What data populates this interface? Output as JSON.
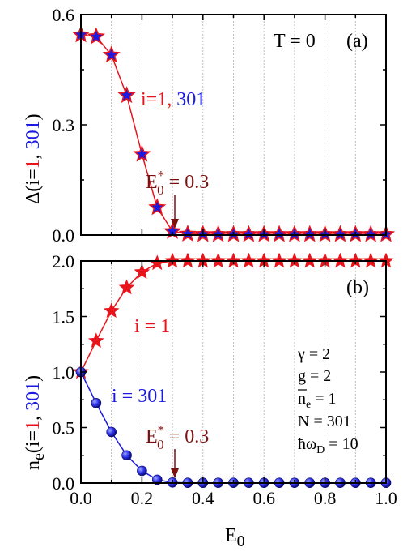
{
  "colors": {
    "red": "#e8141b",
    "blue": "#1a1ae0",
    "dark_red": "#7a1010",
    "black": "#000000"
  },
  "chart_data": [
    {
      "panel": "(a)",
      "type": "line",
      "ylabel_parts": [
        "Δ(i=",
        "1",
        ", ",
        "301",
        ")"
      ],
      "xlim": [
        0,
        1.0
      ],
      "ylim": [
        0,
        0.6
      ],
      "yticks": [
        0.0,
        0.3,
        0.6
      ],
      "ytick_labels": [
        "0.0",
        "0.3",
        "0.6"
      ],
      "grid": "vertical dotted at x = 0.1 … 0.9",
      "label_T": "T = 0",
      "series_label_parts": [
        "i=1, ",
        "301"
      ],
      "series": [
        {
          "name": "i=1, 301",
          "marker": "star",
          "x": [
            0,
            0.05,
            0.1,
            0.15,
            0.2,
            0.25,
            0.3,
            0.35,
            0.4,
            0.45,
            0.5,
            0.55,
            0.6,
            0.65,
            0.7,
            0.75,
            0.8,
            0.85,
            0.9,
            0.95,
            1.0
          ],
          "values": [
            0.545,
            0.54,
            0.49,
            0.38,
            0.22,
            0.075,
            0.01,
            0.003,
            0.002,
            0.002,
            0.002,
            0.002,
            0.002,
            0.002,
            0.002,
            0.002,
            0.002,
            0.002,
            0.002,
            0.002,
            0.002
          ]
        }
      ],
      "annotation": {
        "text": "E",
        "sub": "0",
        "sup": "*",
        "rest": " = 0.3",
        "x": 0.3
      }
    },
    {
      "panel": "(b)",
      "type": "line",
      "ylabel_parts": [
        "n",
        "e",
        "(i=",
        "1",
        ", ",
        "301",
        ")"
      ],
      "xlim": [
        0,
        1.0
      ],
      "ylim": [
        0,
        2.0
      ],
      "yticks": [
        0.0,
        0.5,
        1.0,
        1.5,
        2.0
      ],
      "ytick_labels": [
        "0.0",
        "0.5",
        "1.0",
        "1.5",
        "2.0"
      ],
      "xticks": [
        0.0,
        0.2,
        0.4,
        0.6,
        0.8,
        1.0
      ],
      "xtick_labels": [
        "0.0",
        "0.2",
        "0.4",
        "0.6",
        "0.8",
        "1.0"
      ],
      "xlabel": "E",
      "xlabel_sub": "0",
      "series": [
        {
          "name": "i = 1",
          "marker": "star",
          "x": [
            0,
            0.05,
            0.1,
            0.15,
            0.2,
            0.25,
            0.3,
            0.35,
            0.4,
            0.45,
            0.5,
            0.55,
            0.6,
            0.65,
            0.7,
            0.75,
            0.8,
            0.85,
            0.9,
            0.95,
            1.0
          ],
          "values": [
            1.0,
            1.28,
            1.55,
            1.76,
            1.9,
            1.98,
            2.0,
            2.0,
            2.0,
            2.0,
            2.0,
            2.0,
            2.0,
            2.0,
            2.0,
            2.0,
            2.0,
            2.0,
            2.0,
            2.0,
            2.0
          ]
        },
        {
          "name": "i = 301",
          "marker": "sphere",
          "x": [
            0,
            0.05,
            0.1,
            0.15,
            0.2,
            0.25,
            0.3,
            0.35,
            0.4,
            0.45,
            0.5,
            0.55,
            0.6,
            0.65,
            0.7,
            0.75,
            0.8,
            0.85,
            0.9,
            0.95,
            1.0
          ],
          "values": [
            1.0,
            0.72,
            0.46,
            0.25,
            0.11,
            0.03,
            0.005,
            0.002,
            0.002,
            0.002,
            0.002,
            0.002,
            0.002,
            0.002,
            0.002,
            0.002,
            0.002,
            0.002,
            0.002,
            0.002,
            0.002
          ]
        }
      ],
      "annotation": {
        "text": "E",
        "sub": "0",
        "sup": "*",
        "rest": " = 0.3",
        "x": 0.3
      },
      "params": {
        "gamma": "γ = 2",
        "g": "g = 2",
        "ne_main": "n",
        "ne_sub": "e",
        "ne_rest": " = 1",
        "N": "N = 301",
        "hbar": "ħω",
        "hbar_sub": "D",
        "hbar_rest": " = 10"
      }
    }
  ]
}
